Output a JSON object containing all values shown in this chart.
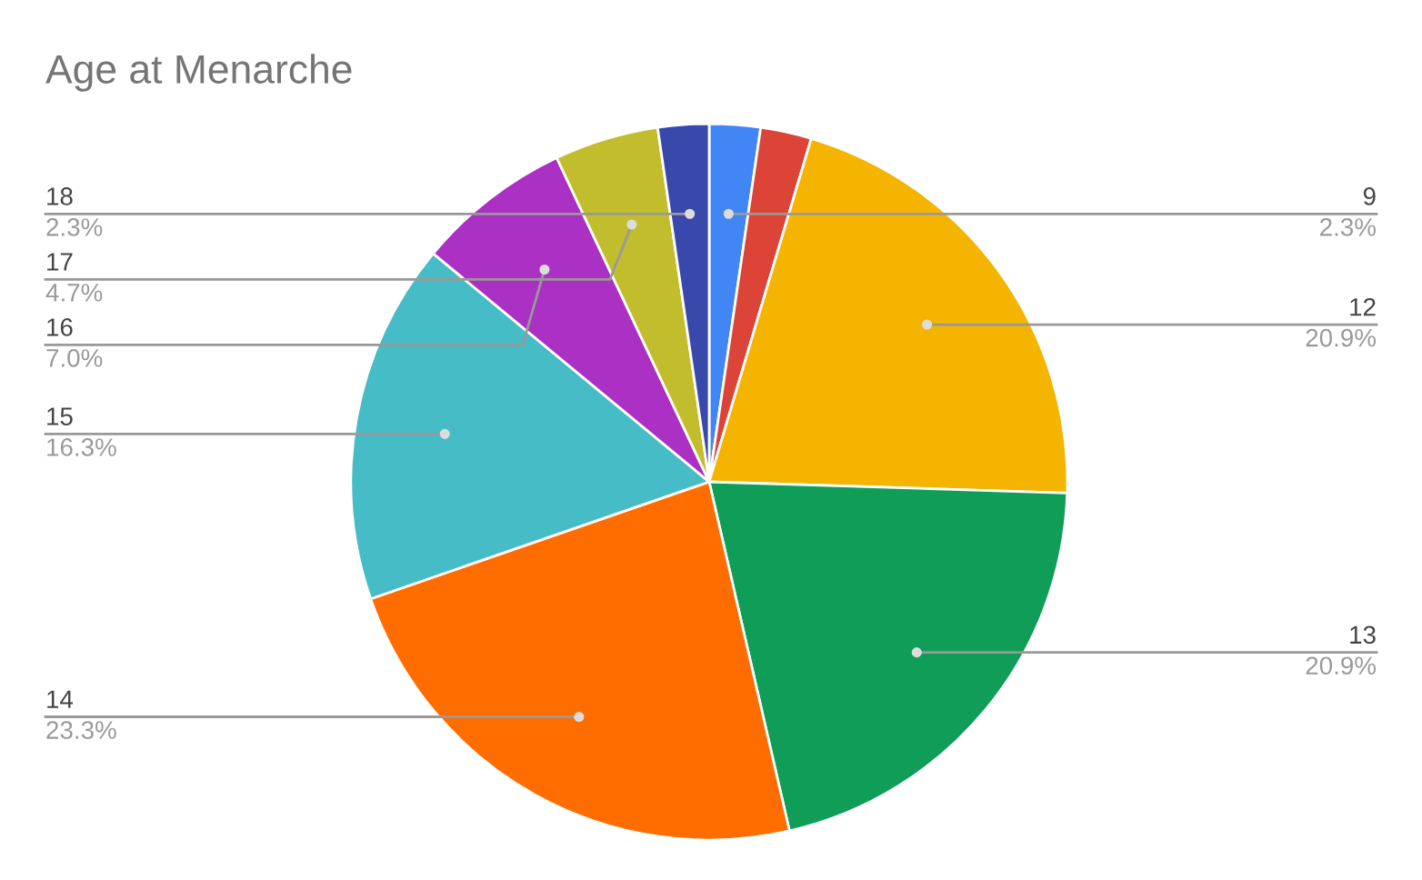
{
  "chart_data": {
    "type": "pie",
    "title": "Age at Menarche",
    "categories": [
      "9",
      null,
      "12",
      "13",
      "14",
      "15",
      "16",
      "17",
      "18"
    ],
    "values": [
      2.3,
      2.3,
      20.9,
      20.9,
      23.3,
      16.3,
      7.0,
      4.7,
      2.3
    ],
    "value_labels": [
      "2.3%",
      null,
      "20.9%",
      "20.9%",
      "23.3%",
      "16.3%",
      "7.0%",
      "4.7%",
      "2.3%"
    ],
    "colors": [
      "#4285f4",
      "#db4437",
      "#f4b400",
      "#0f9d58",
      "#ff6d01",
      "#46bdc6",
      "#ab30c4",
      "#c2bd2c",
      "#3949ab"
    ]
  }
}
